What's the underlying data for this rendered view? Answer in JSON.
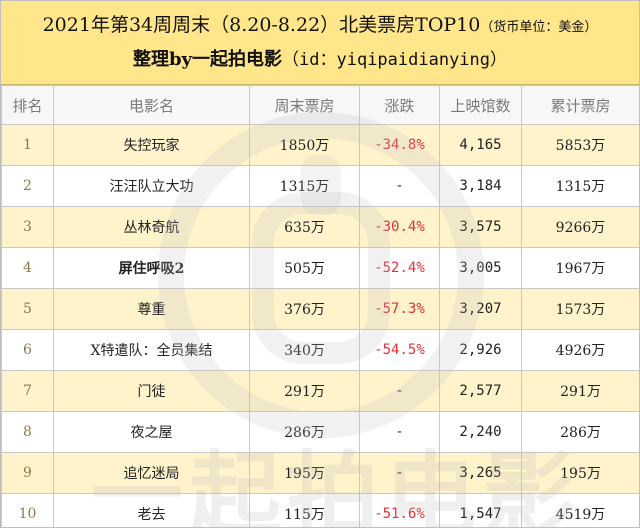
{
  "header": {
    "title": "2021年第34周周末（8.20-8.22）北美票房TOP10",
    "note": "（货币单位：美金）",
    "subtitle_prefix": "整理by一起拍电影",
    "subtitle_id": "（id：yiqipaidianying）"
  },
  "columns": [
    "排名",
    "电影名",
    "周末票房",
    "涨跌",
    "上映馆数",
    "累计票房"
  ],
  "rows": [
    {
      "rank": "1",
      "title": "失控玩家",
      "weekend": "1850万",
      "change": "-34.8%",
      "theaters": "4,165",
      "total": "5853万"
    },
    {
      "rank": "2",
      "title": "汪汪队立大功",
      "weekend": "1315万",
      "change": "-",
      "theaters": "3,184",
      "total": "1315万"
    },
    {
      "rank": "3",
      "title": "丛林奇航",
      "weekend": "635万",
      "change": "-30.4%",
      "theaters": "3,575",
      "total": "9266万"
    },
    {
      "rank": "4",
      "title": "屏住呼吸2",
      "weekend": "505万",
      "change": "-52.4%",
      "theaters": "3,005",
      "total": "1967万"
    },
    {
      "rank": "5",
      "title": "尊重",
      "weekend": "376万",
      "change": "-57.3%",
      "theaters": "3,207",
      "total": "1573万"
    },
    {
      "rank": "6",
      "title": "X特遣队：全员集结",
      "weekend": "340万",
      "change": "-54.5%",
      "theaters": "2,926",
      "total": "4926万"
    },
    {
      "rank": "7",
      "title": "门徒",
      "weekend": "291万",
      "change": "-",
      "theaters": "2,577",
      "total": "291万"
    },
    {
      "rank": "8",
      "title": "夜之屋",
      "weekend": "286万",
      "change": "-",
      "theaters": "2,240",
      "total": "286万"
    },
    {
      "rank": "9",
      "title": "追忆迷局",
      "weekend": "195万",
      "change": "-",
      "theaters": "3,265",
      "total": "195万"
    },
    {
      "rank": "10",
      "title": "老去",
      "weekend": "115万",
      "change": "-51.6%",
      "theaters": "1,547",
      "total": "4519万"
    }
  ],
  "watermark": "一起拍电影",
  "colors": {
    "header_bg": "#ffe68a",
    "odd_row_bg": "#fff3cc",
    "negative_change": "#e0303a"
  }
}
